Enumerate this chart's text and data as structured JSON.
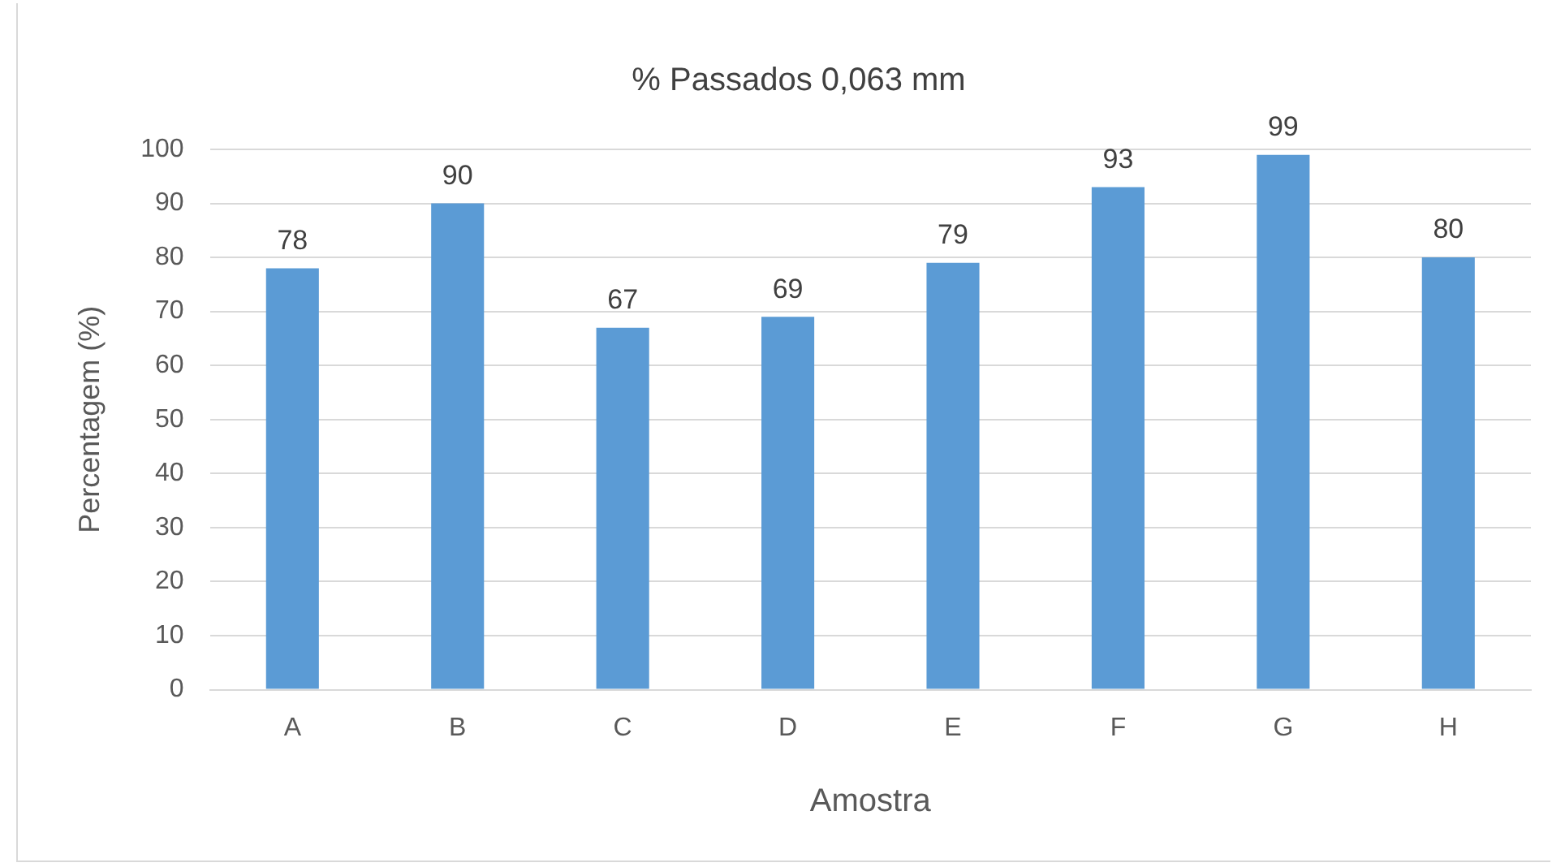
{
  "chart_data": {
    "type": "bar",
    "title": "% Passados 0,063 mm",
    "xlabel": "Amostra",
    "ylabel": "Percentagem (%)",
    "categories": [
      "A",
      "B",
      "C",
      "D",
      "E",
      "F",
      "G",
      "H"
    ],
    "values": [
      78,
      90,
      67,
      69,
      79,
      93,
      99,
      80
    ],
    "color": "#5b9bd5",
    "ylim": [
      0,
      100
    ],
    "yticks": [
      0,
      10,
      20,
      30,
      40,
      50,
      60,
      70,
      80,
      90,
      100
    ],
    "grid": "y",
    "data_labels": true,
    "legend": false
  }
}
